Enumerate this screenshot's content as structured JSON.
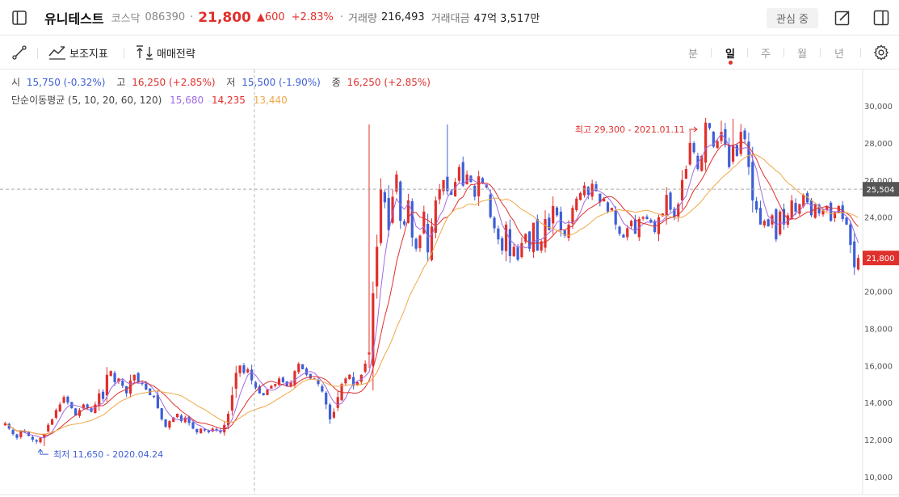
{
  "header": {
    "name": "유니테스트",
    "market": "코스닥",
    "code": "086390",
    "sep": "·",
    "price": "21,800",
    "change": "▲600",
    "change_pct": "+2.83%",
    "volume_label": "거래량",
    "volume": "216,493",
    "amount_label": "거래대금",
    "amount": "47억 3,517만",
    "favorite_label": "관심 중"
  },
  "toolbar": {
    "indicators_label": "보조지표",
    "strategy_label": "매매전략",
    "periods": [
      "분",
      "일",
      "주",
      "월",
      "년"
    ],
    "active_period": "일"
  },
  "ohlc": {
    "open_label": "시",
    "open": "15,750 (-0.32%)",
    "high_label": "고",
    "high": "16,250 (+2.85%)",
    "low_label": "저",
    "low": "15,500 (-1.90%)",
    "close_label": "종",
    "close": "16,250 (+2.85%)"
  },
  "ma": {
    "label": "단순이동평균 (5, 10, 20, 60, 120)",
    "v1": "15,680",
    "v2": "14,235",
    "v3": "13,440",
    "c1": "#a06ae0",
    "c2": "#e0302c",
    "c3": "#f0a848"
  },
  "colors": {
    "up": "#e0302c",
    "down": "#3d5fd6",
    "hi": "#e0302c",
    "lo": "#3d5fd6"
  },
  "chart_data": {
    "type": "candlestick",
    "ylim": [
      9000,
      31500
    ],
    "y_ticks": [
      "30,000",
      "28,000",
      "26,000",
      "24,000",
      "22,000",
      "20,000",
      "18,000",
      "16,000",
      "14,000",
      "12,000",
      "10,000"
    ],
    "y_tick_values": [
      30000,
      28000,
      26000,
      24000,
      22000,
      20000,
      18000,
      16000,
      14000,
      12000,
      10000
    ],
    "high_label": "최고 29,300 - 2021.01.11",
    "low_label": "최저 11,650 - 2020.04.24",
    "high_value": 29300,
    "low_value": 11650,
    "crosshair_price": "25,504",
    "crosshair_value": 25504,
    "last_price": "21,800",
    "last_value": 21800,
    "close": [
      12900,
      12600,
      12300,
      12100,
      12500,
      12400,
      12200,
      12000,
      11900,
      12100,
      12300,
      12800,
      13100,
      13600,
      13900,
      14300,
      14000,
      13700,
      13300,
      13600,
      13900,
      13700,
      13500,
      13900,
      14500,
      14200,
      15500,
      15700,
      15100,
      15300,
      14900,
      14500,
      15200,
      15500,
      15100,
      15000,
      14700,
      14400,
      14300,
      13700,
      13100,
      12700,
      13000,
      13200,
      13400,
      13000,
      13200,
      12900,
      12600,
      12400,
      12600,
      12500,
      12400,
      12600,
      12500,
      12400,
      12800,
      13400,
      14400,
      15600,
      16000,
      15600,
      15800,
      15200,
      14800,
      14500,
      14400,
      14700,
      14900,
      15000,
      15300,
      15100,
      14900,
      15100,
      15700,
      16100,
      15800,
      15500,
      15300,
      15300,
      15000,
      14600,
      13900,
      13100,
      13500,
      14300,
      15000,
      15300,
      15500,
      14900,
      15100,
      15500,
      16100,
      16700,
      19900,
      22400,
      25500,
      24800,
      23300,
      25100,
      26300,
      23800,
      23600,
      24900,
      22900,
      22300,
      23000,
      24300,
      22100,
      23500,
      24900,
      25500,
      26000,
      25400,
      25200,
      25900,
      26700,
      25700,
      26300,
      25900,
      25100,
      26200,
      25800,
      25600,
      24000,
      23400,
      22800,
      22200,
      23600,
      21900,
      22400,
      21700,
      22600,
      23100,
      22300,
      23700,
      22200,
      22700,
      23900,
      23300,
      24600,
      24100,
      23300,
      23000,
      23600,
      24500,
      25000,
      25300,
      25700,
      25200,
      25800,
      25400,
      24800,
      25000,
      24300,
      24500,
      23600,
      23100,
      22900,
      23400,
      23800,
      23100,
      23900,
      24000,
      23900,
      23700,
      23200,
      24000,
      24200,
      25200,
      24400,
      24000,
      24700,
      26000,
      26600,
      28000,
      27500,
      26600,
      27300,
      29100,
      28800,
      27800,
      28100,
      28600,
      27900,
      26700,
      27900,
      27300,
      28600,
      28200,
      26700,
      24900,
      24400,
      23600,
      23800,
      23500,
      24100,
      22800,
      24300,
      23600,
      24100,
      24900,
      24300,
      24700,
      25200,
      24800,
      24100,
      24700,
      24200,
      24400,
      24600,
      23800,
      24300,
      24600,
      23900,
      23600,
      22500,
      21300,
      21800
    ]
  }
}
